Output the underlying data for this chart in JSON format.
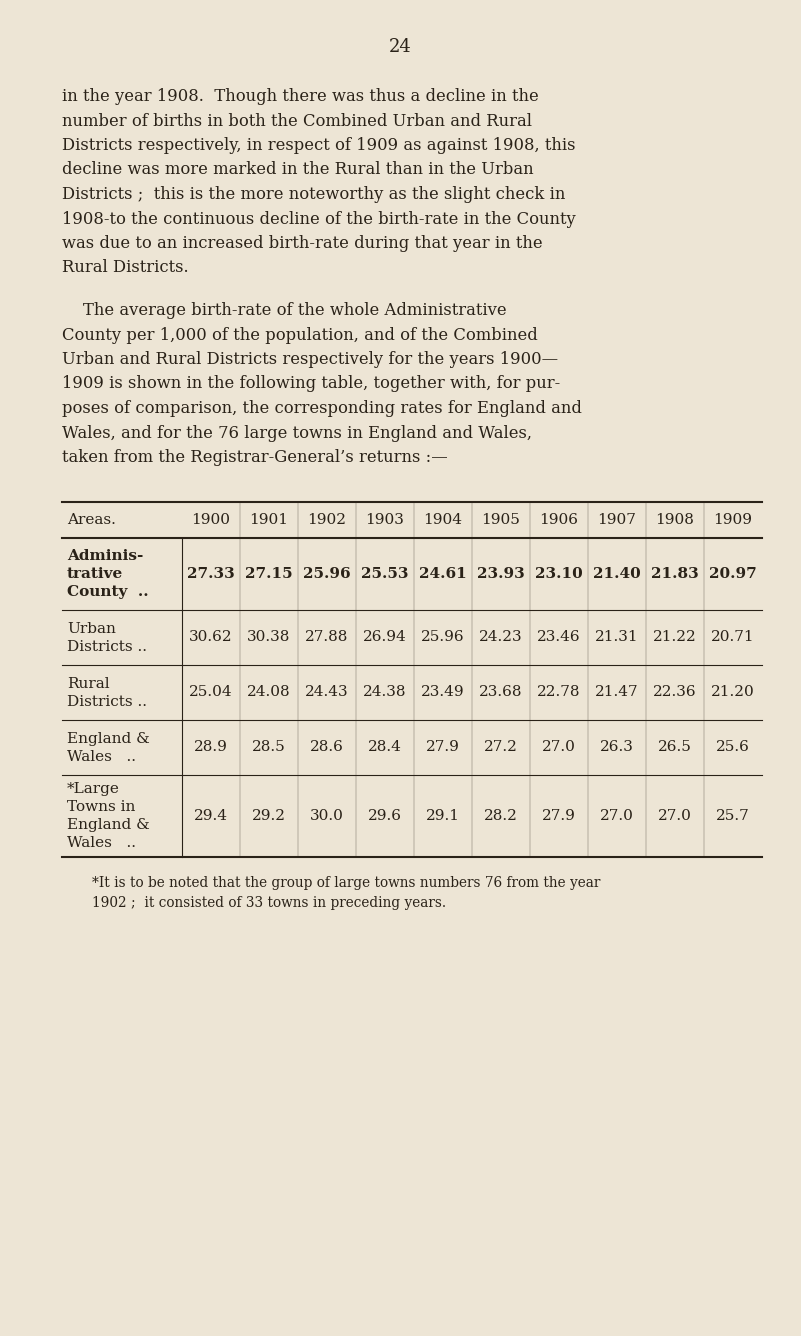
{
  "page_number": "24",
  "bg_color": "#ede5d5",
  "text_color": "#2a2218",
  "para1_lines": [
    "in the year 1908.  Though there was thus a decline in the",
    "number of births in both the Combined Urban and Rural",
    "Districts respectively, in respect of 1909 as against 1908, this",
    "decline was more marked in the Rural than in the Urban",
    "Districts ;  this is the more noteworthy as the slight check in",
    "1908‐to the continuous decline of the birth-rate in the County",
    "was due to an increased birth-rate during that year in the",
    "Rural Districts."
  ],
  "para2_lines": [
    "    The average birth-rate of the whole Administrative",
    "County per 1,000 of the population, and of the Combined",
    "Urban and Rural Districts respectively for the years 1900—",
    "1909 is shown in the following table, together with, for pur-",
    "poses of comparison, the corresponding rates for England and",
    "Wales, and for the 76 large towns in England and Wales,",
    "taken from the Registrar-General’s returns :—"
  ],
  "years": [
    "1900",
    "1901",
    "1902",
    "1903",
    "1904",
    "1905",
    "1906",
    "1907",
    "1908",
    "1909"
  ],
  "rows": [
    {
      "label_lines": [
        "Adminis-",
        "trative",
        "County  .."
      ],
      "values": [
        "27.33",
        "27.15",
        "25.96",
        "25.53",
        "24.61",
        "23.93",
        "23.10",
        "21.40",
        "21.83",
        "20.97"
      ],
      "bold": true
    },
    {
      "label_lines": [
        "Urban",
        "Districts .."
      ],
      "values": [
        "30.62",
        "30.38",
        "27.88",
        "26.94",
        "25.96",
        "24.23",
        "23.46",
        "21.31",
        "21.22",
        "20.71"
      ],
      "bold": false
    },
    {
      "label_lines": [
        "Rural",
        "Districts .."
      ],
      "values": [
        "25.04",
        "24.08",
        "24.43",
        "24.38",
        "23.49",
        "23.68",
        "22.78",
        "21.47",
        "22.36",
        "21.20"
      ],
      "bold": false
    },
    {
      "label_lines": [
        "England &",
        "Wales   .."
      ],
      "values": [
        "28.9",
        "28.5",
        "28.6",
        "28.4",
        "27.9",
        "27.2",
        "27.0",
        "26.3",
        "26.5",
        "25.6"
      ],
      "bold": false
    },
    {
      "label_lines": [
        "*Large",
        "Towns in",
        "England &",
        "Wales   .."
      ],
      "values": [
        "29.4",
        "29.2",
        "30.0",
        "29.6",
        "29.1",
        "28.2",
        "27.9",
        "27.0",
        "27.0",
        "25.7"
      ],
      "bold": false
    }
  ],
  "footnote_lines": [
    "*It is to be noted that the group of large towns numbers 76 from the year",
    "1902 ;  it consisted of 33 towns in preceding years."
  ]
}
